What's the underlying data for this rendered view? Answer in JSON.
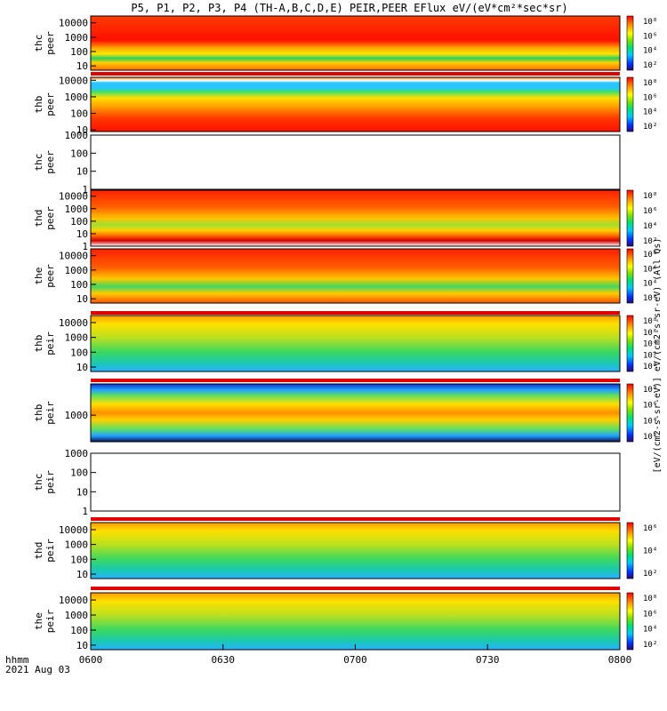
{
  "title": "P5, P1, P2, P3, P4 (TH-A,B,C,D,E) PEIR,PEER EFlux eV/(eV*cm²*sec*sr)",
  "chart_data": {
    "type": "heatmap",
    "x_ticks": [
      "0600",
      "0630",
      "0700",
      "0730",
      "0800"
    ],
    "x_tick_hours": [
      6.0,
      6.5,
      7.0,
      7.5,
      8.0
    ],
    "x_range_hours": [
      6.0,
      8.0
    ],
    "x_label_line1": "hhmm",
    "x_label_line2": "2021 Aug 03",
    "y_scale": "log",
    "colorbar_ticks_A": [
      "10⁸",
      "10⁶",
      "10⁴",
      "10²"
    ],
    "colorbar_ticks_B": [
      "10⁸",
      "10⁶",
      "10⁴",
      "10²",
      "10⁰"
    ],
    "colorbar_ticks_C": [
      "10⁶",
      "10⁴",
      "10²"
    ],
    "panels": [
      {
        "name": "thc peer",
        "line1": "thc",
        "line2": "peer",
        "ylim": [
          5,
          30000
        ],
        "y_ticks": [
          "10000",
          "1000",
          "100",
          "10"
        ],
        "y_tick_values": [
          10000,
          1000,
          100,
          10
        ],
        "has_data": true,
        "colorbar": "A"
      },
      {
        "name": "thb peer",
        "line1": "thb",
        "line2": "peer",
        "ylim": [
          8,
          15000
        ],
        "y_ticks": [
          "10000",
          "1000",
          "100",
          "10"
        ],
        "y_tick_values": [
          10000,
          1000,
          100,
          10
        ],
        "has_data": true,
        "colorbar": "A"
      },
      {
        "name": "thc peer",
        "line1": "thc",
        "line2": "peer",
        "ylim": [
          1,
          1000
        ],
        "y_ticks": [
          "1000",
          "100",
          "10",
          "1"
        ],
        "y_tick_values": [
          1000,
          100,
          10,
          1
        ],
        "has_data": false,
        "colorbar": ""
      },
      {
        "name": "thd peer",
        "line1": "thd",
        "line2": "peer",
        "ylim": [
          1,
          30000
        ],
        "y_ticks": [
          "10000",
          "1000",
          "100",
          "10",
          "1"
        ],
        "y_tick_values": [
          10000,
          1000,
          100,
          10,
          1
        ],
        "has_data": true,
        "colorbar": "A"
      },
      {
        "name": "the peer",
        "line1": "the",
        "line2": "peer",
        "ylim": [
          5,
          30000
        ],
        "y_ticks": [
          "10000",
          "1000",
          "100",
          "10"
        ],
        "y_tick_values": [
          10000,
          1000,
          100,
          10
        ],
        "has_data": true,
        "colorbar": "A"
      },
      {
        "name": "thb peir",
        "line1": "thb",
        "line2": "peir",
        "ylim": [
          5,
          30000
        ],
        "y_ticks": [
          "10000",
          "1000",
          "100",
          "10"
        ],
        "y_tick_values": [
          10000,
          1000,
          100,
          10
        ],
        "has_data": true,
        "colorbar": "B"
      },
      {
        "name": "thb peir",
        "line1": "thb",
        "line2": "peir",
        "ylim": [
          100,
          15000
        ],
        "y_ticks": [
          "1000"
        ],
        "y_tick_values": [
          1000
        ],
        "has_data": true,
        "colorbar": "A"
      },
      {
        "name": "thc peir",
        "line1": "thc",
        "line2": "peir",
        "ylim": [
          1,
          1000
        ],
        "y_ticks": [
          "1000",
          "100",
          "10",
          "1"
        ],
        "y_tick_values": [
          1000,
          100,
          10,
          1
        ],
        "has_data": false,
        "colorbar": ""
      },
      {
        "name": "thd peir",
        "line1": "thd",
        "line2": "peir",
        "ylim": [
          5,
          30000
        ],
        "y_ticks": [
          "10000",
          "1000",
          "100",
          "10"
        ],
        "y_tick_values": [
          10000,
          1000,
          100,
          10
        ],
        "has_data": true,
        "colorbar": "C"
      },
      {
        "name": "the peir",
        "line1": "the",
        "line2": "peir",
        "ylim": [
          5,
          30000
        ],
        "y_ticks": [
          "10000",
          "1000",
          "100",
          "10"
        ],
        "y_tick_values": [
          10000,
          1000,
          100,
          10
        ],
        "has_data": true,
        "colorbar": "A"
      }
    ],
    "colorbar_label": "[eV/(cm2-s-sr-eV)] eV/(cm2-s-sr-eV) (All Qs)"
  }
}
